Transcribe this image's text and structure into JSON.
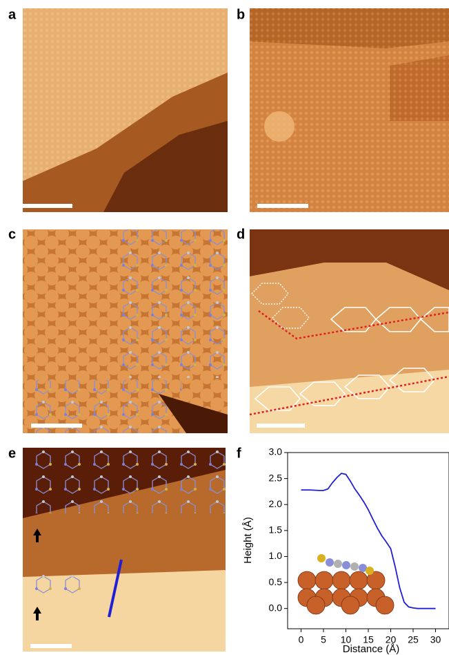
{
  "panels": {
    "labels": [
      "a",
      "b",
      "c",
      "d",
      "e",
      "f"
    ]
  },
  "chart_data": {
    "type": "line",
    "x_label": "Distance (Å)",
    "y_label": "Height (Å)",
    "x": [
      0,
      2,
      4,
      5,
      6,
      7,
      8,
      9,
      10,
      11,
      12,
      13,
      14,
      15,
      16,
      17,
      18,
      19,
      20,
      21,
      22,
      23,
      24,
      25,
      26,
      28,
      30
    ],
    "values": [
      2.28,
      2.28,
      2.27,
      2.27,
      2.3,
      2.42,
      2.52,
      2.6,
      2.58,
      2.45,
      2.3,
      2.18,
      2.05,
      1.9,
      1.72,
      1.55,
      1.4,
      1.28,
      1.15,
      0.8,
      0.4,
      0.12,
      0.03,
      0.01,
      0,
      0,
      0
    ],
    "color": "#1f1fd6",
    "xlim": [
      -3,
      33
    ],
    "ylim": [
      -0.39,
      3.0
    ],
    "xticks": [
      0,
      5,
      10,
      15,
      20,
      25,
      30
    ],
    "yticks": [
      {
        "value": 0,
        "label": "0.0"
      },
      0.5,
      {
        "value": 1,
        "label": "1.0"
      },
      1.5,
      {
        "value": 2,
        "label": "2.0"
      },
      2.5,
      {
        "value": 3,
        "label": "3.0"
      }
    ]
  }
}
